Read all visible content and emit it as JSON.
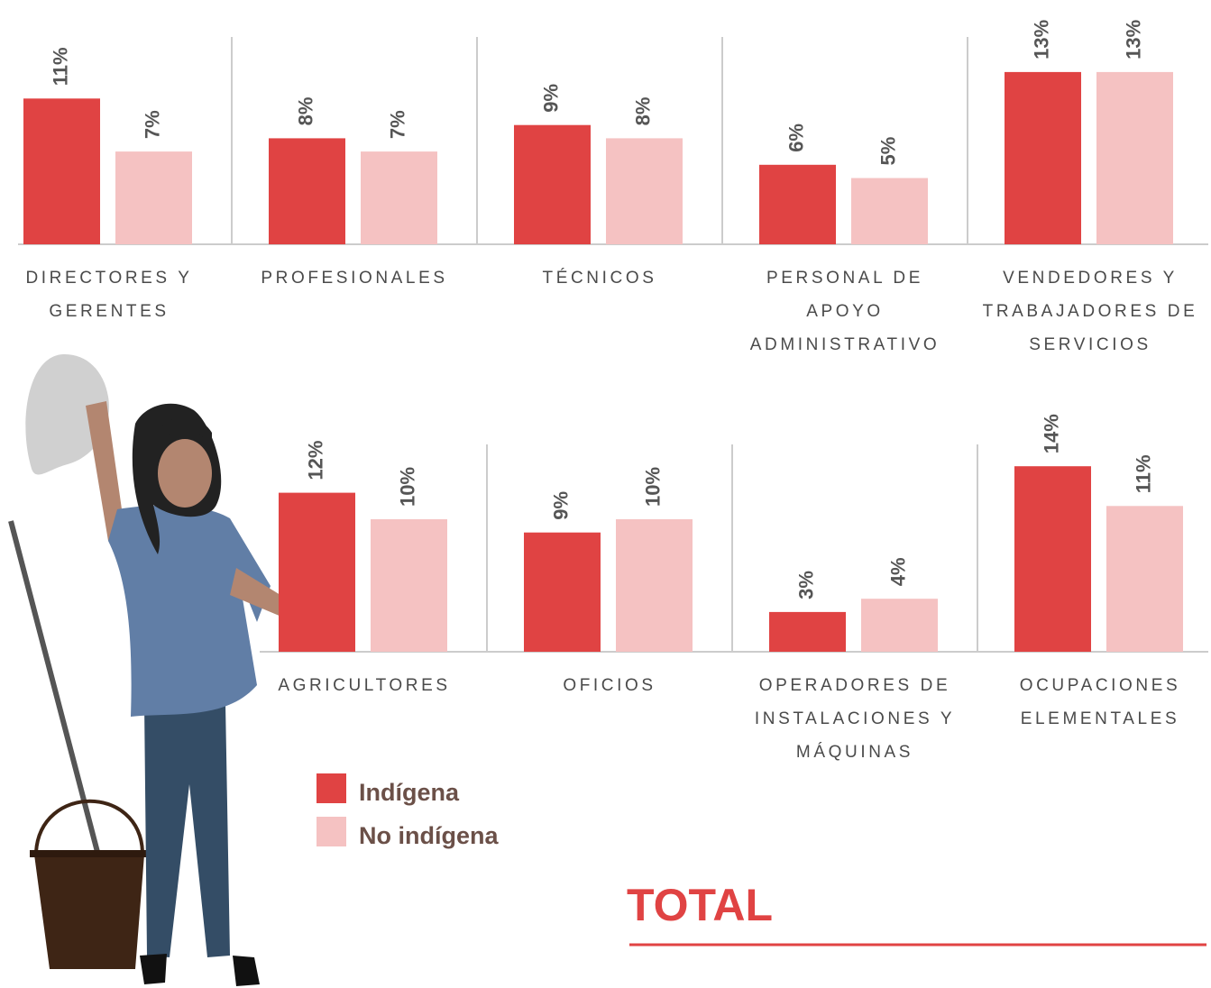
{
  "chart_data": {
    "type": "bar",
    "title": "TOTAL",
    "categories": [
      "DIRECTORES Y GERENTES",
      "PROFESIONALES",
      "TÉCNICOS",
      "PERSONAL DE APOYO ADMINISTRATIVO",
      "VENDEDORES Y TRABAJADORES DE SERVICIOS",
      "AGRICULTORES",
      "OFICIOS",
      "OPERADORES DE INSTALACIONES Y MÁQUINAS",
      "OCUPACIONES ELEMENTALES"
    ],
    "series": [
      {
        "name": "Indígena",
        "color": "#e04343",
        "values": [
          11,
          8,
          9,
          6,
          13,
          12,
          9,
          3,
          14
        ],
        "value_labels": [
          "11%",
          "8%",
          "9%",
          "6%",
          "13%",
          "12%",
          "9%",
          "3%",
          "14%"
        ]
      },
      {
        "name": "No indígena",
        "color": "#f5c2c2",
        "values": [
          7,
          7,
          8,
          5,
          13,
          10,
          10,
          4,
          11
        ],
        "value_labels": [
          "7%",
          "7%",
          "8%",
          "5%",
          "13%",
          "10%",
          "10%",
          "4%",
          "11%"
        ]
      }
    ]
  }
}
